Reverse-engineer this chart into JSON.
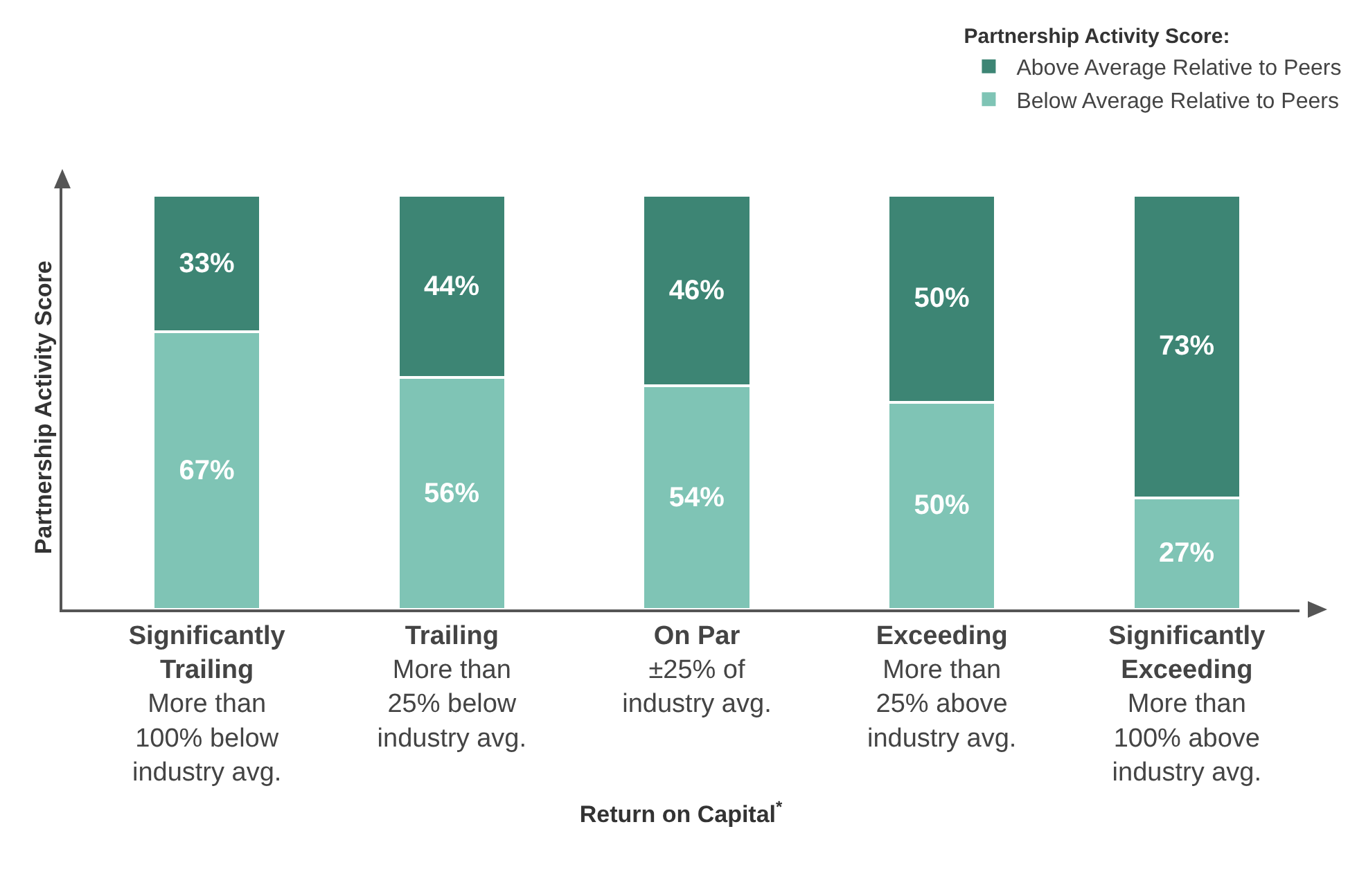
{
  "chart_data": {
    "type": "bar",
    "stacked": true,
    "legend": "top right",
    "legend_title": "Partnership Activity Score:",
    "xlabel": "Return on Capital$^{*}$",
    "ylabel": "Partnership Activity Score",
    "categories": [
      "Significantly\nTrailing\n\nMore than\n100% below\nindustry avg.",
      "Trailing\n\nMore than\n25% below\nindustry avg.",
      "On Par\n\n±25% of\nindustry avg.",
      "Exceeding\n\nMore than\n25% above\nindustry avg.",
      "Significantly\nExceeding\n\nMore than\n100% above\nindustry avg."
    ],
    "series": [
      {
        "name": "Below Average Relative to Peers",
        "color": "#7fc4b5",
        "values": [
          67,
          56,
          54,
          50,
          27
        ],
        "value_labels": [
          "67%",
          "56%",
          "54%",
          "50%",
          "27%"
        ]
      },
      {
        "name": "Above Average Relative to Peers",
        "color": "#3d8574",
        "values": [
          33,
          44,
          46,
          50,
          73
        ],
        "value_labels": [
          "33%",
          "44%",
          "46%",
          "50%",
          "73%"
        ]
      }
    ]
  }
}
